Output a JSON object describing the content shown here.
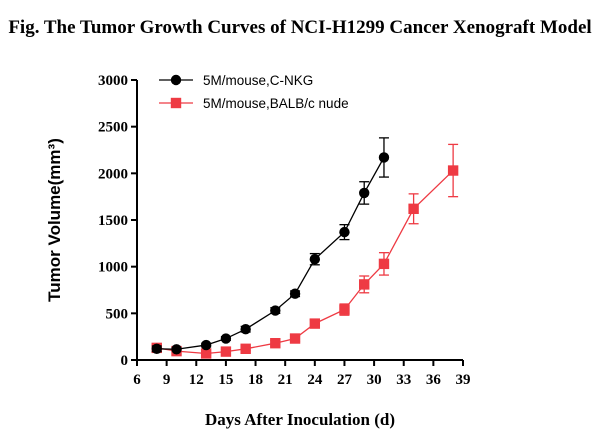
{
  "chart_data": {
    "type": "line",
    "title": "Fig. The Tumor Growth Curves of NCI-H1299 Cancer Xenograft Model",
    "xlabel": "Days After Inoculation (d)",
    "ylabel": "Tumor Volume(mm³)",
    "xlim": [
      6,
      39
    ],
    "ylim": [
      0,
      3000
    ],
    "xticks": [
      6,
      9,
      12,
      15,
      18,
      21,
      24,
      27,
      30,
      33,
      36,
      39
    ],
    "yticks": [
      0,
      500,
      1000,
      1500,
      2000,
      2500,
      3000
    ],
    "grid": false,
    "legend_position": "top-left",
    "series": [
      {
        "name": "5M/mouse,C-NKG",
        "color": "#000000",
        "marker": "circle",
        "points": [
          {
            "x": 8,
            "y": 120,
            "err": 30
          },
          {
            "x": 10,
            "y": 115,
            "err": 15
          },
          {
            "x": 13,
            "y": 160,
            "err": 20
          },
          {
            "x": 15,
            "y": 230,
            "err": 20
          },
          {
            "x": 17,
            "y": 330,
            "err": 30
          },
          {
            "x": 20,
            "y": 530,
            "err": 30
          },
          {
            "x": 22,
            "y": 710,
            "err": 30
          },
          {
            "x": 24,
            "y": 1080,
            "err": 60
          },
          {
            "x": 27,
            "y": 1370,
            "err": 80
          },
          {
            "x": 29,
            "y": 1790,
            "err": 120
          },
          {
            "x": 31,
            "y": 2170,
            "err": 210
          }
        ]
      },
      {
        "name": "5M/mouse,BALB/c nude",
        "color": "#ee3a43",
        "marker": "square",
        "points": [
          {
            "x": 8,
            "y": 130,
            "err": 40
          },
          {
            "x": 10,
            "y": 95,
            "err": 15
          },
          {
            "x": 13,
            "y": 70,
            "err": 15
          },
          {
            "x": 15,
            "y": 90,
            "err": 20
          },
          {
            "x": 17,
            "y": 120,
            "err": 20
          },
          {
            "x": 20,
            "y": 180,
            "err": 30
          },
          {
            "x": 22,
            "y": 230,
            "err": 30
          },
          {
            "x": 24,
            "y": 390,
            "err": 40
          },
          {
            "x": 27,
            "y": 540,
            "err": 60
          },
          {
            "x": 29,
            "y": 810,
            "err": 90
          },
          {
            "x": 31,
            "y": 1030,
            "err": 120
          },
          {
            "x": 34,
            "y": 1620,
            "err": 160
          },
          {
            "x": 38,
            "y": 2030,
            "err": 280
          }
        ]
      }
    ]
  }
}
